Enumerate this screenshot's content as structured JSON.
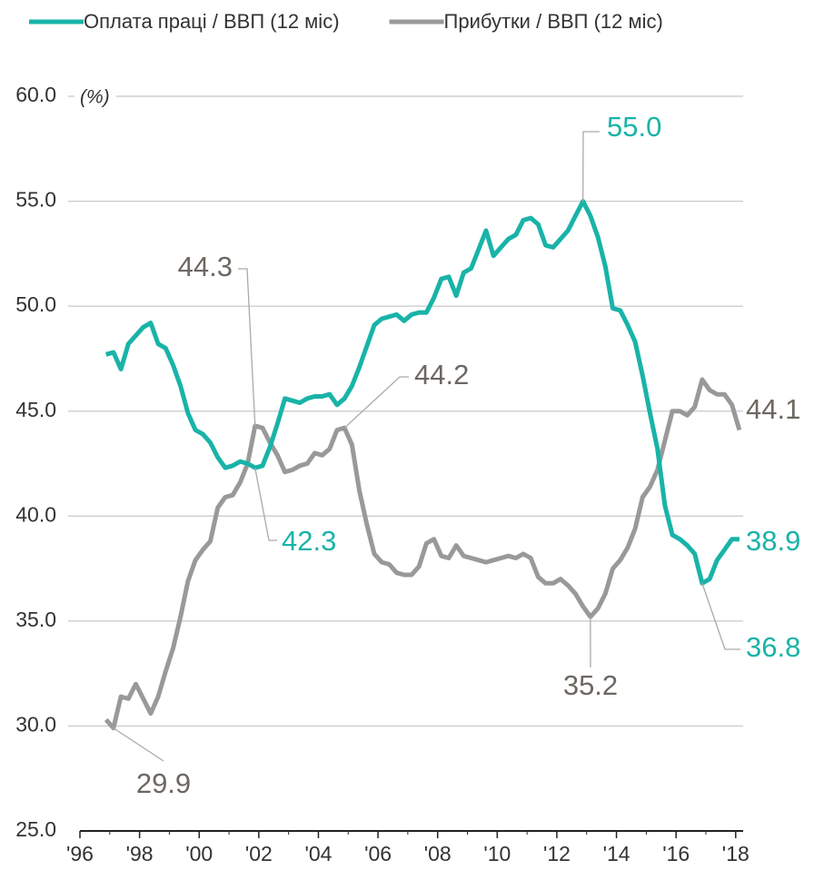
{
  "chart_data": {
    "type": "line",
    "y_unit": "(%)",
    "x": [
      1996.875,
      1997.125,
      1997.375,
      1997.625,
      1997.875,
      1998.125,
      1998.375,
      1998.625,
      1998.875,
      1999.125,
      1999.375,
      1999.625,
      1999.875,
      2000.125,
      2000.375,
      2000.625,
      2000.875,
      2001.125,
      2001.375,
      2001.625,
      2001.875,
      2002.125,
      2002.375,
      2002.625,
      2002.875,
      2003.125,
      2003.375,
      2003.625,
      2003.875,
      2004.125,
      2004.375,
      2004.625,
      2004.875,
      2005.125,
      2005.375,
      2005.625,
      2005.875,
      2006.125,
      2006.375,
      2006.625,
      2006.875,
      2007.125,
      2007.375,
      2007.625,
      2007.875,
      2008.125,
      2008.375,
      2008.625,
      2008.875,
      2009.125,
      2009.375,
      2009.625,
      2009.875,
      2010.125,
      2010.375,
      2010.625,
      2010.875,
      2011.125,
      2011.375,
      2011.625,
      2011.875,
      2012.125,
      2012.375,
      2012.625,
      2012.875,
      2013.125,
      2013.375,
      2013.625,
      2013.875,
      2014.125,
      2014.375,
      2014.625,
      2014.875,
      2015.125,
      2015.375,
      2015.625,
      2015.875,
      2016.125,
      2016.375,
      2016.625,
      2016.875,
      2017.125,
      2017.375,
      2017.625,
      2017.875,
      2018.125
    ],
    "series": [
      {
        "name": "Оплата праці / ВВП (12 міс)",
        "color": "#19b3a8",
        "values": [
          47.7,
          47.8,
          47.0,
          48.2,
          48.6,
          49.0,
          49.2,
          48.2,
          48.0,
          47.2,
          46.2,
          44.9,
          44.1,
          43.9,
          43.5,
          42.8,
          42.3,
          42.4,
          42.6,
          42.5,
          42.3,
          42.4,
          43.3,
          44.4,
          45.6,
          45.5,
          45.4,
          45.6,
          45.7,
          45.7,
          45.8,
          45.3,
          45.6,
          46.2,
          47.1,
          48.1,
          49.1,
          49.4,
          49.5,
          49.6,
          49.3,
          49.6,
          49.7,
          49.7,
          50.4,
          51.3,
          51.4,
          50.5,
          51.6,
          51.8,
          52.7,
          53.6,
          52.4,
          52.8,
          53.2,
          53.4,
          54.1,
          54.2,
          53.9,
          52.9,
          52.8,
          53.2,
          53.6,
          54.3,
          55.0,
          54.3,
          53.3,
          51.9,
          49.9,
          49.8,
          49.1,
          48.3,
          46.7,
          44.9,
          43.2,
          40.5,
          39.1,
          38.9,
          38.6,
          38.2,
          36.8,
          37.0,
          37.9,
          38.4,
          38.9,
          38.9
        ],
        "value_labels": [
          null,
          null,
          null,
          null,
          null,
          null,
          null,
          null,
          null,
          null,
          null,
          null,
          null,
          null,
          null,
          null,
          null,
          null,
          null,
          null,
          "42.3",
          null,
          null,
          null,
          null,
          null,
          null,
          null,
          null,
          null,
          null,
          null,
          null,
          null,
          null,
          null,
          null,
          null,
          null,
          null,
          null,
          null,
          null,
          null,
          null,
          null,
          null,
          null,
          null,
          null,
          null,
          null,
          null,
          null,
          null,
          null,
          null,
          null,
          null,
          null,
          null,
          null,
          null,
          null,
          "55.0",
          null,
          null,
          null,
          null,
          null,
          null,
          null,
          null,
          null,
          null,
          null,
          null,
          null,
          null,
          null,
          "36.8",
          null,
          null,
          null,
          null,
          "38.9"
        ]
      },
      {
        "name": "Прибутки / ВВП (12 міс)",
        "color": "#999999",
        "values": [
          30.3,
          29.9,
          31.4,
          31.3,
          32.0,
          31.3,
          30.6,
          31.4,
          32.6,
          33.7,
          35.2,
          36.9,
          37.9,
          38.4,
          38.8,
          40.4,
          40.9,
          41.0,
          41.6,
          42.5,
          44.3,
          44.2,
          43.5,
          42.9,
          42.1,
          42.2,
          42.4,
          42.5,
          43.0,
          42.9,
          43.2,
          44.1,
          44.2,
          43.4,
          41.2,
          39.6,
          38.2,
          37.8,
          37.7,
          37.3,
          37.2,
          37.2,
          37.6,
          38.7,
          38.9,
          38.1,
          38.0,
          38.6,
          38.1,
          38.0,
          37.9,
          37.8,
          37.9,
          38.0,
          38.1,
          38.0,
          38.2,
          38.0,
          37.1,
          36.8,
          36.8,
          37.0,
          36.7,
          36.3,
          35.7,
          35.2,
          35.6,
          36.3,
          37.5,
          37.9,
          38.5,
          39.4,
          40.9,
          41.4,
          42.2,
          43.6,
          45.0,
          45.0,
          44.8,
          45.2,
          46.5,
          46.0,
          45.8,
          45.8,
          45.3,
          44.1
        ],
        "value_labels": [
          null,
          "29.9",
          null,
          null,
          null,
          null,
          null,
          null,
          null,
          null,
          null,
          null,
          null,
          null,
          null,
          null,
          null,
          null,
          null,
          null,
          "44.3",
          null,
          null,
          null,
          null,
          null,
          null,
          null,
          null,
          null,
          null,
          null,
          "44.2",
          null,
          null,
          null,
          null,
          null,
          null,
          null,
          null,
          null,
          null,
          null,
          null,
          null,
          null,
          null,
          null,
          null,
          null,
          null,
          null,
          null,
          null,
          null,
          null,
          null,
          null,
          null,
          null,
          null,
          null,
          null,
          null,
          "35.2",
          null,
          null,
          null,
          null,
          null,
          null,
          null,
          null,
          null,
          null,
          null,
          null,
          null,
          null,
          null,
          null,
          null,
          null,
          null,
          "44.1"
        ]
      }
    ],
    "xlim": [
      1996,
      2018.25
    ],
    "ylim": [
      25,
      60
    ],
    "xticks": [
      {
        "value": 1996,
        "label": "'96"
      },
      {
        "value": 1998,
        "label": "'98"
      },
      {
        "value": 2000,
        "label": "'00"
      },
      {
        "value": 2002,
        "label": "'02"
      },
      {
        "value": 2004,
        "label": "'04"
      },
      {
        "value": 2006,
        "label": "'06"
      },
      {
        "value": 2008,
        "label": "'08"
      },
      {
        "value": 2010,
        "label": "'10"
      },
      {
        "value": 2012,
        "label": "'12"
      },
      {
        "value": 2014,
        "label": "'14"
      },
      {
        "value": 2016,
        "label": "'16"
      },
      {
        "value": 2018,
        "label": "'18"
      }
    ],
    "yticks": [
      {
        "value": 25,
        "label": "25.0"
      },
      {
        "value": 30,
        "label": "30.0"
      },
      {
        "value": 35,
        "label": "35.0"
      },
      {
        "value": 40,
        "label": "40.0"
      },
      {
        "value": 45,
        "label": "45.0"
      },
      {
        "value": 50,
        "label": "50.0"
      },
      {
        "value": 55,
        "label": "55.0"
      },
      {
        "value": 60,
        "label": "60.0"
      }
    ],
    "grid": true,
    "legend": "top"
  }
}
